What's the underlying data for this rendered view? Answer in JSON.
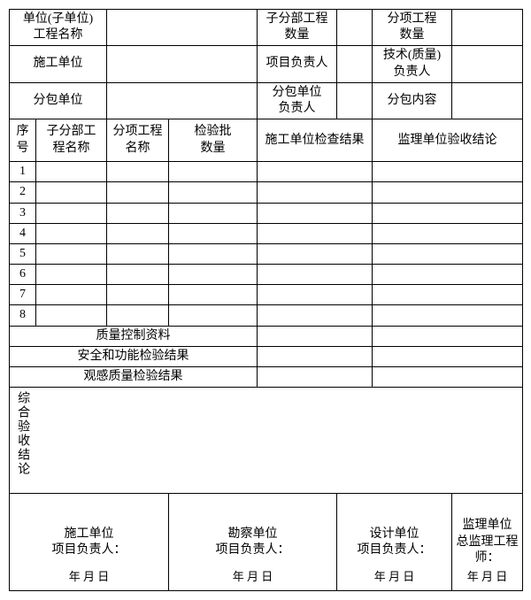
{
  "header": {
    "r1c1": "单位(子单位)\n工程名称",
    "r1c3": "子分部工程\n数量",
    "r1c5": "分项工程\n数量",
    "r2c1": "施工单位",
    "r2c3": "项目负责人",
    "r2c5": "技术(质量)\n负责人",
    "r3c1": "分包单位",
    "r3c3": "分包单位\n负责人",
    "r3c5": "分包内容"
  },
  "thead": {
    "c1": "序号",
    "c2": "子分部工\n程名称",
    "c3": "分项工程\n名称",
    "c4": "检验批\n数量",
    "c5": "施工单位检查结果",
    "c6": "监理单位验收结论"
  },
  "rows": [
    "1",
    "2",
    "3",
    "4",
    "5",
    "6",
    "7",
    "8"
  ],
  "summary": {
    "s1": "质量控制资料",
    "s2": "安全和功能检验结果",
    "s3": "观感质量检验结果"
  },
  "conclusion_label": "综合验收结论",
  "sign": {
    "b1_org": "施工单位",
    "b1_role": "项目负责人：",
    "b2_org": "勘察单位",
    "b2_role": "项目负责人：",
    "b3_org": "设计单位",
    "b3_role": "项目负责人：",
    "b4_org": "监理单位",
    "b4_role": "总监理工程师：",
    "date": "年  月  日"
  }
}
